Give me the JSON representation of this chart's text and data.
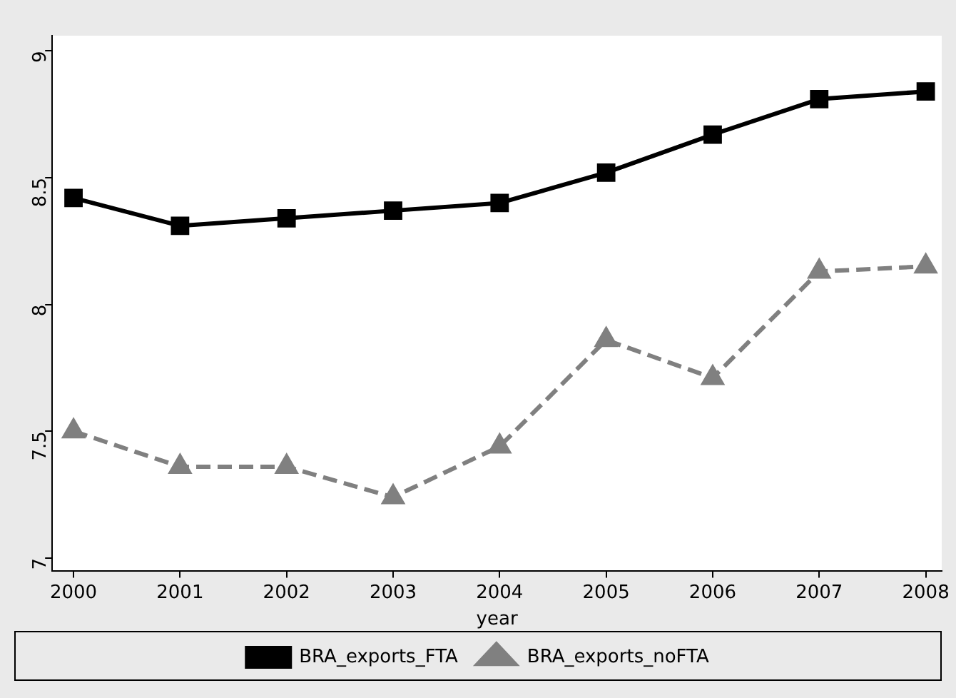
{
  "chart_data": {
    "type": "line",
    "xlabel": "year",
    "x": [
      2000,
      2001,
      2002,
      2003,
      2004,
      2005,
      2006,
      2007,
      2008
    ],
    "xlim": [
      1999.8,
      2008.15
    ],
    "xticks": [
      2000,
      2001,
      2002,
      2003,
      2004,
      2005,
      2006,
      2007,
      2008
    ],
    "ylim": [
      6.95,
      9.06
    ],
    "yticks": [
      7,
      7.5,
      8,
      8.5,
      9
    ],
    "grid": false,
    "legend": "bottom",
    "series": [
      {
        "name": "BRA_exports_FTA",
        "color": "#000000",
        "marker": "square",
        "line_style": "solid",
        "values": [
          8.42,
          8.31,
          8.34,
          8.37,
          8.4,
          8.52,
          8.67,
          8.81,
          8.84
        ]
      },
      {
        "name": "BRA_exports_noFTA",
        "color": "#808080",
        "marker": "triangle",
        "line_style": "dashed",
        "values": [
          7.5,
          7.36,
          7.36,
          7.24,
          7.44,
          7.86,
          7.71,
          8.13,
          8.15
        ]
      }
    ]
  }
}
